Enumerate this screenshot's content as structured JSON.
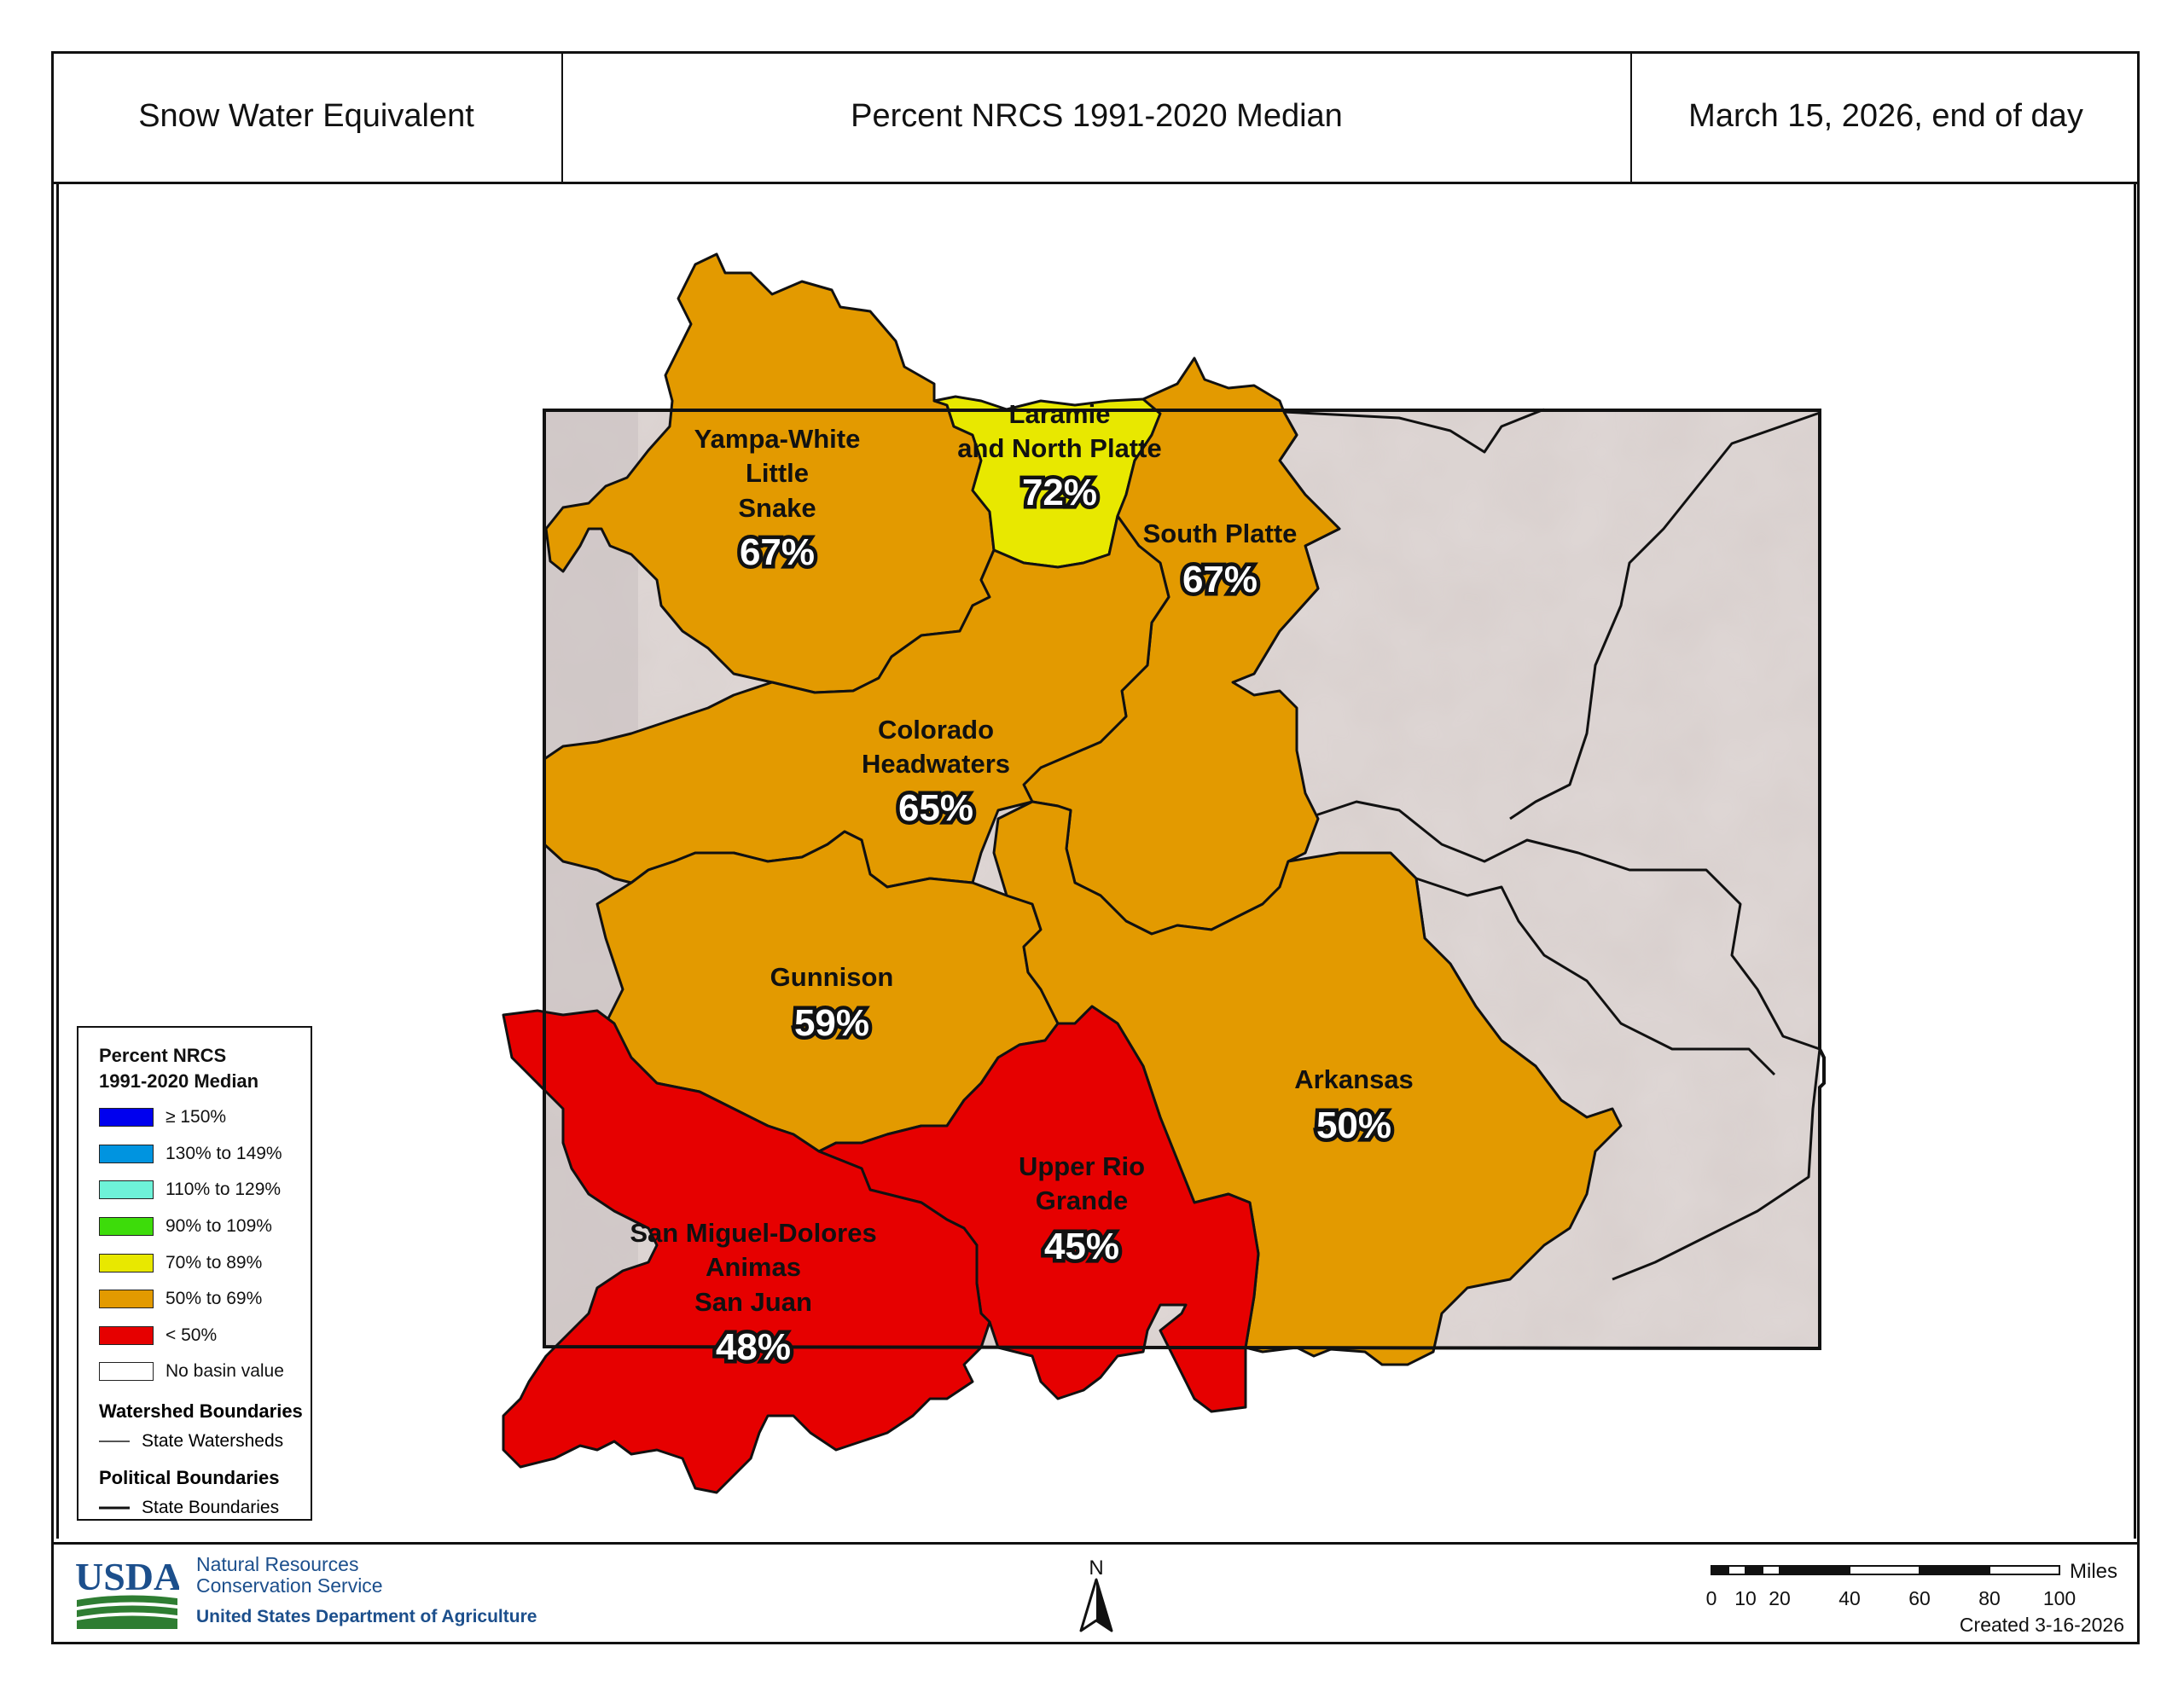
{
  "header": {
    "left_title": "Snow Water Equivalent",
    "center_title": "Percent NRCS 1991-2020 Median",
    "right_title": "March 15, 2026, end of day"
  },
  "basins": [
    {
      "id": "yampa",
      "name_lines": [
        "Yampa-White",
        "Little",
        "Snake"
      ],
      "percent": "67%",
      "category": "50% to 69%",
      "color": "#e39a00"
    },
    {
      "id": "laramie",
      "name_lines": [
        "Laramie",
        "and North Platte"
      ],
      "percent": "72%",
      "category": "70% to 89%",
      "color": "#e8e800"
    },
    {
      "id": "south-platte",
      "name_lines": [
        "South Platte"
      ],
      "percent": "67%",
      "category": "50% to 69%",
      "color": "#e39a00"
    },
    {
      "id": "colorado-headwaters",
      "name_lines": [
        "Colorado",
        "Headwaters"
      ],
      "percent": "65%",
      "category": "50% to 69%",
      "color": "#e39a00"
    },
    {
      "id": "gunnison",
      "name_lines": [
        "Gunnison"
      ],
      "percent": "59%",
      "category": "50% to 69%",
      "color": "#e39a00"
    },
    {
      "id": "arkansas",
      "name_lines": [
        "Arkansas"
      ],
      "percent": "50%",
      "category": "50% to 69%",
      "color": "#e39a00"
    },
    {
      "id": "upper-rio-grande",
      "name_lines": [
        "Upper Rio",
        "Grande"
      ],
      "percent": "45%",
      "category": "< 50%",
      "color": "#e60000"
    },
    {
      "id": "san-miguel",
      "name_lines": [
        "San Miguel-Dolores",
        "Animas",
        "San Juan"
      ],
      "percent": "48%",
      "category": "< 50%",
      "color": "#e60000"
    }
  ],
  "legend": {
    "title_line1": "Percent NRCS",
    "title_line2": "1991-2020 Median",
    "items": [
      {
        "label": "≥ 150%",
        "color": "#0000ee"
      },
      {
        "label": "130% to 149%",
        "color": "#0094e0"
      },
      {
        "label": "110% to 129%",
        "color": "#6ef2d8"
      },
      {
        "label": "90% to 109%",
        "color": "#3ddc0a"
      },
      {
        "label": "70% to 89%",
        "color": "#e8e800"
      },
      {
        "label": "50% to 69%",
        "color": "#e39a00"
      },
      {
        "label": "< 50%",
        "color": "#e60000"
      },
      {
        "label": "No basin value",
        "color": "#ffffff"
      }
    ],
    "watershed_heading": "Watershed Boundaries",
    "watershed_item": "State Watersheds",
    "political_heading": "Political Boundaries",
    "political_item": "State Boundaries"
  },
  "footer": {
    "agency_line1": "Natural Resources",
    "agency_line2": "Conservation Service",
    "department": "United States Department of Agriculture",
    "logo_text": "USDA",
    "north_label": "N",
    "scale_unit": "Miles",
    "scale_ticks": [
      "0",
      "10",
      "20",
      "40",
      "60",
      "80",
      "100"
    ],
    "created": "Created 3-16-2026"
  },
  "colors": {
    "orange": "#e39a00",
    "yellow": "#e8e800",
    "red": "#e60000",
    "terrain": "#d8cfcd",
    "usda_blue": "#1c4f8c",
    "usda_green": "#2e7d32"
  }
}
